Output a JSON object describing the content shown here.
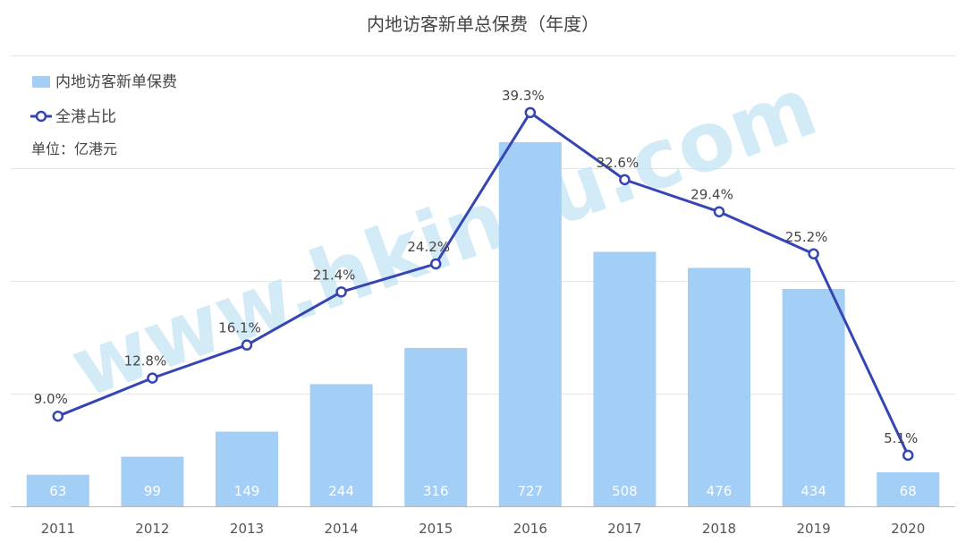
{
  "chart_data": {
    "type": "bar",
    "title": "内地访客新单总保费（年度）",
    "unit_label": "单位：亿港元",
    "categories": [
      "2011",
      "2012",
      "2013",
      "2014",
      "2015",
      "2016",
      "2017",
      "2018",
      "2019",
      "2020"
    ],
    "series": [
      {
        "name": "内地访客新单保费",
        "type": "bar",
        "axis": "left",
        "values": [
          63,
          99,
          149,
          244,
          316,
          727,
          508,
          476,
          434,
          68
        ],
        "color": "#a3cef6"
      },
      {
        "name": "全港占比",
        "type": "line",
        "axis": "right",
        "unit": "%",
        "values": [
          9.0,
          12.8,
          16.1,
          21.4,
          24.2,
          39.3,
          32.6,
          29.4,
          25.2,
          5.1
        ],
        "labels": [
          "9.0%",
          "12.8%",
          "16.1%",
          "21.4%",
          "24.2%",
          "39.3%",
          "32.6%",
          "29.4%",
          "25.2%",
          "5.1%"
        ],
        "color": "#3545b3"
      }
    ],
    "ylim_left": [
      0,
      900
    ],
    "ylim_right": [
      0,
      45
    ],
    "grid": true,
    "legend_position": "top-left",
    "watermark": "www.hkinsu.com"
  }
}
